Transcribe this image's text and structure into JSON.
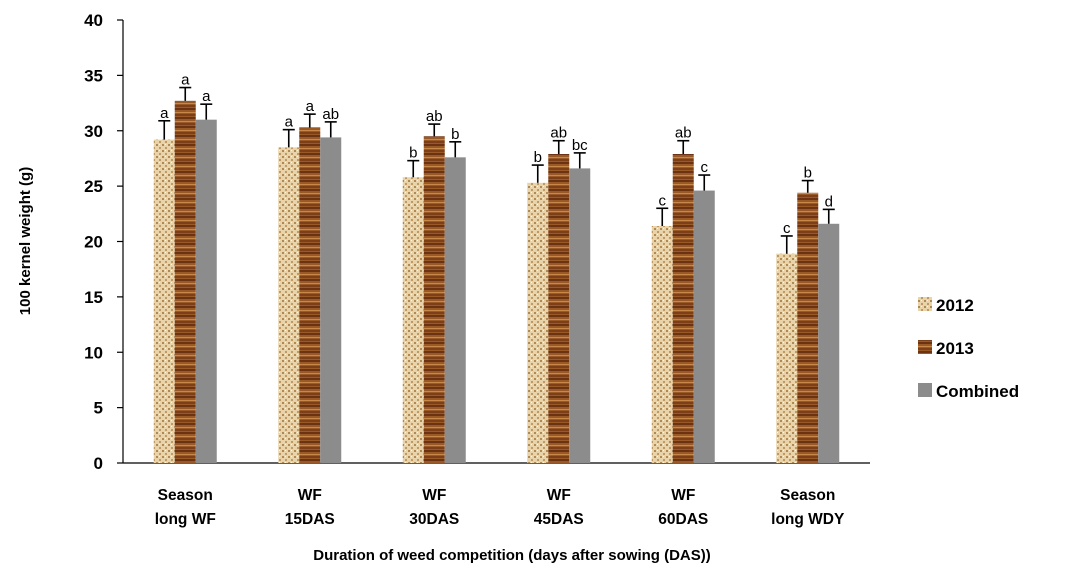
{
  "chart_data": {
    "type": "bar",
    "title": "",
    "xlabel": "Duration of weed competition (days after sowing (DAS))",
    "ylabel": "100 kernel weight (g)",
    "ylim": [
      0,
      40
    ],
    "yticks": [
      "0",
      "5",
      "10",
      "15",
      "20",
      "25",
      "30",
      "35",
      "40"
    ],
    "categories": [
      [
        "Season",
        "long WF"
      ],
      [
        "WF",
        "15DAS"
      ],
      [
        "WF",
        "30DAS"
      ],
      [
        "WF",
        "45DAS"
      ],
      [
        "WF",
        "60DAS"
      ],
      [
        "Season",
        "long WDY"
      ]
    ],
    "series": [
      {
        "name": "2012",
        "color": "#e6cfa4",
        "pattern": "pat2012",
        "values": [
          29.2,
          28.5,
          25.8,
          25.3,
          21.4,
          18.9
        ],
        "errors": [
          1.7,
          1.6,
          1.5,
          1.6,
          1.6,
          1.6
        ],
        "letters": [
          "a",
          "a",
          "b",
          "b",
          "c",
          "c"
        ]
      },
      {
        "name": "2013",
        "color": "#8a4a1e",
        "pattern": "pat2013",
        "values": [
          32.7,
          30.3,
          29.5,
          27.9,
          27.9,
          24.4
        ],
        "errors": [
          1.2,
          1.2,
          1.1,
          1.2,
          1.2,
          1.1
        ],
        "letters": [
          "a",
          "a",
          "ab",
          "ab",
          "ab",
          "b"
        ]
      },
      {
        "name": "Combined",
        "color": "#8c8c8c",
        "pattern": "",
        "values": [
          31.0,
          29.4,
          27.6,
          26.6,
          24.6,
          21.6
        ],
        "errors": [
          1.4,
          1.4,
          1.4,
          1.4,
          1.4,
          1.3
        ],
        "letters": [
          "a",
          "ab",
          "b",
          "bc",
          "c",
          "d"
        ]
      }
    ],
    "legend": "right",
    "grid": false
  }
}
